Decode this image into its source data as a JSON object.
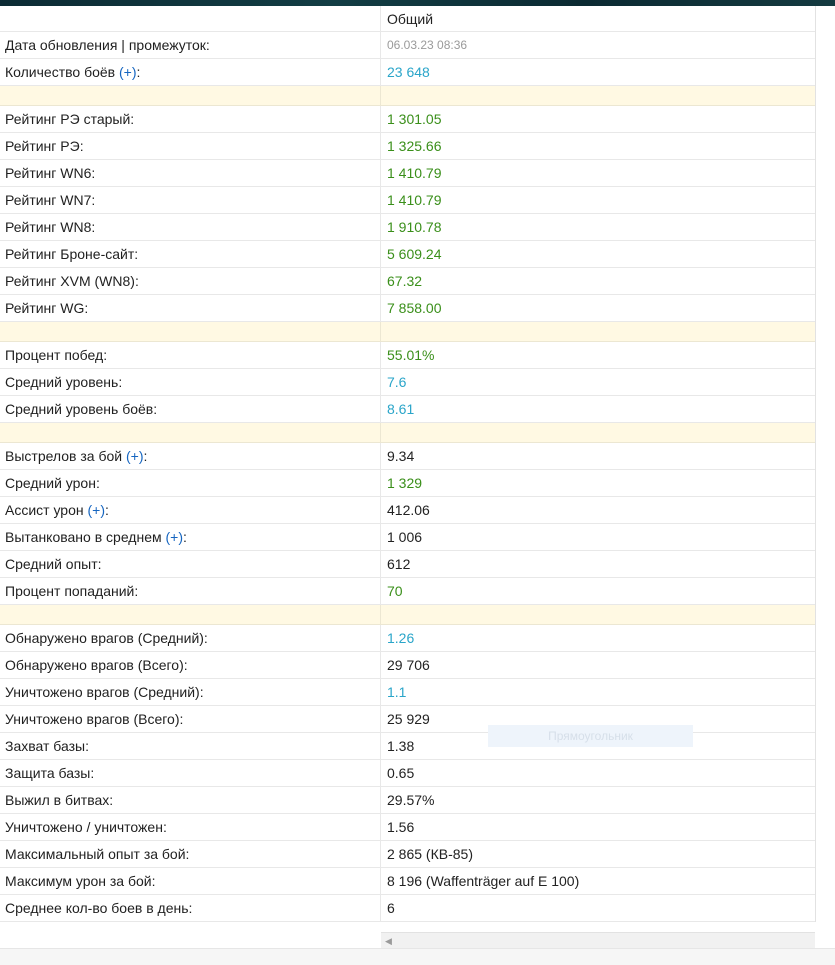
{
  "table": {
    "column_header": "Общий",
    "rows": [
      {
        "label": "Дата обновления | промежуток:",
        "value": "06.03.23 08:36"
      },
      {
        "label": "Количество боёв",
        "plus": "(+)",
        "suffix": ":",
        "value": "23 648"
      },
      {
        "label": "Рейтинг РЭ старый:",
        "value": "1 301.05"
      },
      {
        "label": "Рейтинг РЭ:",
        "value": "1 325.66"
      },
      {
        "label": "Рейтинг WN6:",
        "value": "1 410.79"
      },
      {
        "label": "Рейтинг WN7:",
        "value": "1 410.79"
      },
      {
        "label": "Рейтинг WN8:",
        "value": "1 910.78"
      },
      {
        "label": "Рейтинг Броне-сайт:",
        "value": "5 609.24"
      },
      {
        "label": "Рейтинг XVM (WN8):",
        "value": "67.32"
      },
      {
        "label": "Рейтинг WG:",
        "value": "7 858.00"
      },
      {
        "label": "Процент побед:",
        "value": "55.01%"
      },
      {
        "label": "Средний уровень:",
        "value": "7.6"
      },
      {
        "label": "Средний уровень боёв:",
        "value": "8.61"
      },
      {
        "label": "Выстрелов за бой",
        "plus": "(+)",
        "suffix": ":",
        "value": "9.34"
      },
      {
        "label": "Средний урон:",
        "value": "1 329"
      },
      {
        "label": "Ассист урон",
        "plus": "(+)",
        "suffix": ":",
        "value": "412.06"
      },
      {
        "label": "Вытанковано в среднем",
        "plus": "(+)",
        "suffix": ":",
        "value": "1 006"
      },
      {
        "label": "Средний опыт:",
        "value": "612"
      },
      {
        "label": "Процент попаданий:",
        "value": "70"
      },
      {
        "label": "Обнаружено врагов (Средний):",
        "value": "1.26"
      },
      {
        "label": "Обнаружено врагов (Всего):",
        "value": "29 706"
      },
      {
        "label": "Уничтожено врагов (Средний):",
        "value": "1.1"
      },
      {
        "label": "Уничтожено врагов (Всего):",
        "value": "25 929"
      },
      {
        "label": "Захват базы:",
        "value": "1.38"
      },
      {
        "label": "Защита базы:",
        "value": "0.65"
      },
      {
        "label": "Выжил в битвах:",
        "value": "29.57%"
      },
      {
        "label": "Уничтожено / уничтожен:",
        "value": "1.56"
      },
      {
        "label": "Максимальный опыт за бой:",
        "value": "2 865 (КВ-85)"
      },
      {
        "label": "Максимум урон за бой:",
        "value": "8 196 (Waffenträger auf E 100)"
      },
      {
        "label": "Среднее кол-во боев в день:",
        "value": "6"
      }
    ]
  },
  "overlay": {
    "ghost_label": "Прямоугольник"
  },
  "colors": {
    "green": "#3a8f1a",
    "blue": "#2aa5c9",
    "separator": "#fff9e3",
    "link": "#1565c0"
  }
}
